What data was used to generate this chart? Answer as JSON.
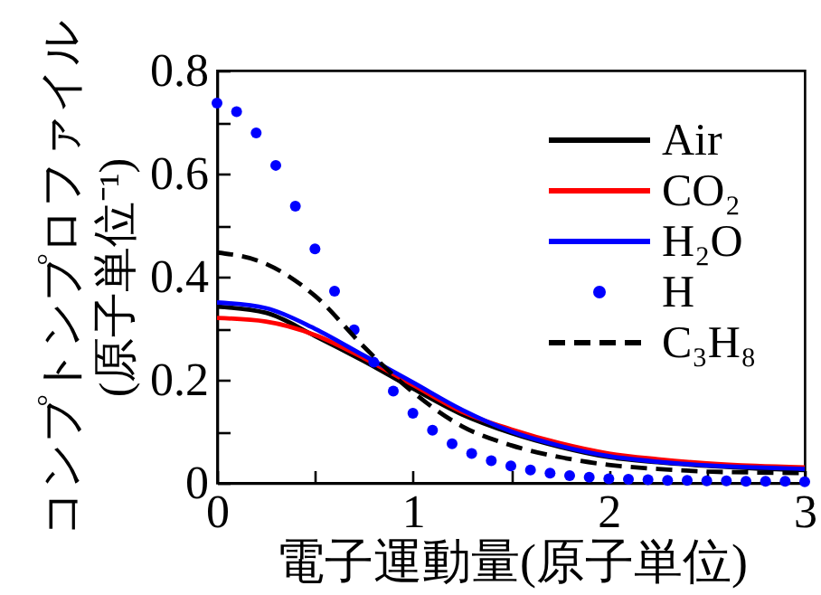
{
  "chart_data": {
    "type": "line",
    "xlabel": "電子運動量(原子単位)",
    "ylabel": "コンプトンプロファイル\n(原子単位⁻¹)",
    "xlim": [
      0,
      3
    ],
    "xticks": [
      0,
      {
        "value": 0.5,
        "label": null
      },
      1,
      {
        "value": 1.5,
        "label": null
      },
      2,
      {
        "value": 2.5,
        "label": null
      },
      3
    ],
    "ylim": [
      0,
      0.8
    ],
    "yticks": [
      0,
      {
        "value": 0.1,
        "label": null
      },
      0.2,
      {
        "value": 0.3,
        "label": null
      },
      0.4,
      {
        "value": 0.5,
        "label": null
      },
      0.6,
      {
        "value": 0.7,
        "label": null
      },
      0.8
    ],
    "grid": false,
    "legend": "top right",
    "series": [
      {
        "name": "Air",
        "color": "#000000",
        "line_style": "solid",
        "x": [
          0,
          0.25,
          0.5,
          0.75,
          1,
          1.25,
          1.5,
          1.75,
          2,
          2.25,
          2.5,
          2.75,
          3
        ],
        "values": [
          0.342,
          0.33,
          0.285,
          0.236,
          0.183,
          0.133,
          0.097,
          0.07,
          0.05,
          0.04,
          0.033,
          0.028,
          0.025
        ]
      },
      {
        "name": "CO₂",
        "color": "#ff0000",
        "line_style": "solid",
        "x": [
          0,
          0.25,
          0.5,
          0.75,
          1,
          1.25,
          1.5,
          1.75,
          2,
          2.25,
          2.5,
          2.75,
          3
        ],
        "values": [
          0.32,
          0.313,
          0.287,
          0.242,
          0.19,
          0.138,
          0.104,
          0.077,
          0.057,
          0.046,
          0.038,
          0.033,
          0.03
        ]
      },
      {
        "name": "H₂O",
        "color": "#0000ff",
        "line_style": "solid",
        "x": [
          0,
          0.25,
          0.5,
          0.75,
          1,
          1.25,
          1.5,
          1.75,
          2,
          2.25,
          2.5,
          2.75,
          3
        ],
        "values": [
          0.35,
          0.339,
          0.299,
          0.247,
          0.195,
          0.142,
          0.1,
          0.072,
          0.052,
          0.041,
          0.034,
          0.03,
          0.027
        ]
      },
      {
        "name": "H",
        "type": "scatter",
        "marker": "circle",
        "color": "#0000ff",
        "x": [
          0,
          0.1,
          0.2,
          0.3,
          0.4,
          0.5,
          0.6,
          0.7,
          0.8,
          0.9,
          1.0,
          1.1,
          1.2,
          1.3,
          1.4,
          1.5,
          1.6,
          1.7,
          1.8,
          1.9,
          2.0,
          2.1,
          2.2,
          2.3,
          2.4,
          2.5,
          2.6,
          2.7,
          2.8,
          2.9,
          3.0
        ],
        "values": [
          0.737,
          0.72,
          0.679,
          0.616,
          0.537,
          0.454,
          0.372,
          0.297,
          0.234,
          0.178,
          0.135,
          0.102,
          0.076,
          0.057,
          0.043,
          0.033,
          0.025,
          0.019,
          0.014,
          0.011,
          0.008,
          0.007,
          0.006,
          0.005,
          0.005,
          0.004,
          0.004,
          0.003,
          0.003,
          0.003,
          0.002
        ]
      },
      {
        "name": "C₃H₈",
        "color": "#000000",
        "line_style": "dashed",
        "x": [
          0,
          0.25,
          0.5,
          0.75,
          1,
          1.25,
          1.5,
          1.75,
          2,
          2.25,
          2.5,
          2.75,
          3
        ],
        "values": [
          0.447,
          0.425,
          0.363,
          0.264,
          0.176,
          0.11,
          0.073,
          0.05,
          0.035,
          0.027,
          0.022,
          0.02,
          0.019
        ]
      }
    ]
  }
}
